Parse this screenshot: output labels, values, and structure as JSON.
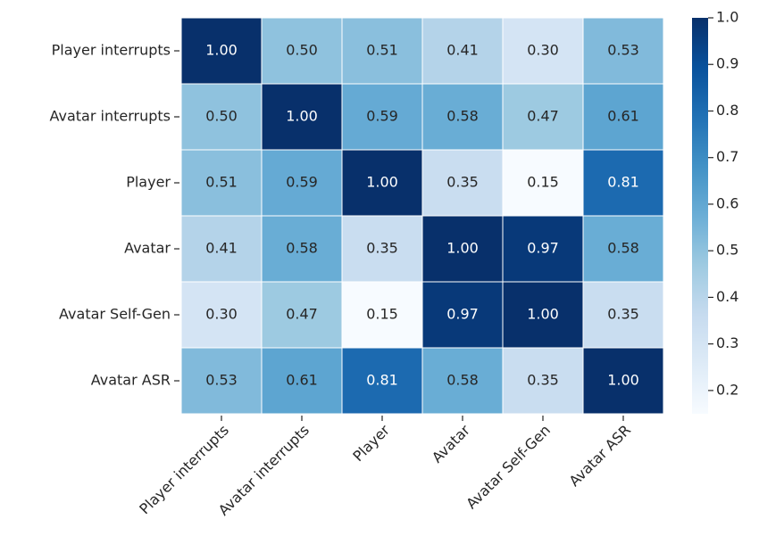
{
  "chart_data": {
    "type": "heatmap",
    "x_categories": [
      "Player interrupts",
      "Avatar interrupts",
      "Player",
      "Avatar",
      "Avatar Self-Gen",
      "Avatar ASR"
    ],
    "y_categories": [
      "Player interrupts",
      "Avatar interrupts",
      "Player",
      "Avatar",
      "Avatar Self-Gen",
      "Avatar ASR"
    ],
    "values": [
      [
        1,
        0.5,
        0.51,
        0.41,
        0.3,
        0.53
      ],
      [
        0.5,
        1,
        0.59,
        0.58,
        0.47,
        0.61
      ],
      [
        0.51,
        0.59,
        1,
        0.35,
        0.15,
        0.81
      ],
      [
        0.41,
        0.58,
        0.35,
        1,
        0.97,
        0.58
      ],
      [
        0.3,
        0.47,
        0.15,
        0.97,
        1,
        0.35
      ],
      [
        0.53,
        0.61,
        0.81,
        0.58,
        0.35,
        1
      ]
    ],
    "value_labels": [
      [
        "1.00",
        "0.50",
        "0.51",
        "0.41",
        "0.30",
        "0.53"
      ],
      [
        "0.50",
        "1.00",
        "0.59",
        "0.58",
        "0.47",
        "0.61"
      ],
      [
        "0.51",
        "0.59",
        "1.00",
        "0.35",
        "0.15",
        "0.81"
      ],
      [
        "0.41",
        "0.58",
        "0.35",
        "1.00",
        "0.97",
        "0.58"
      ],
      [
        "0.30",
        "0.47",
        "0.15",
        "0.97",
        "1.00",
        "0.35"
      ],
      [
        "0.53",
        "0.61",
        "0.81",
        "0.58",
        "0.35",
        "1.00"
      ]
    ],
    "colormap": "Blues",
    "clim": [
      0.15,
      1.0
    ],
    "cticks": [
      0.2,
      0.3,
      0.4,
      0.5,
      0.6,
      0.7,
      0.8,
      0.9,
      {
        "value": 1.0,
        "label": "1.0"
      }
    ]
  }
}
